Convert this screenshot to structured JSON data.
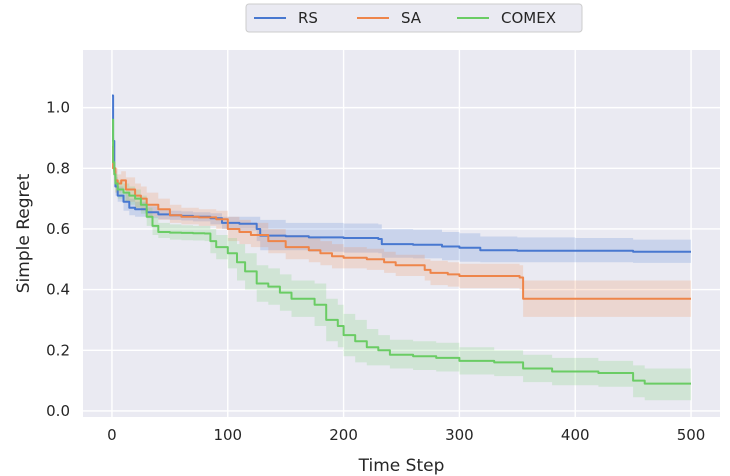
{
  "chart_data": {
    "type": "line",
    "xlabel": "Time Step",
    "ylabel": "Simple Regret",
    "xlim": [
      -25,
      525
    ],
    "ylim": [
      -0.02,
      1.19
    ],
    "xticks": [
      0,
      100,
      200,
      300,
      400,
      500
    ],
    "xtick_labels": [
      "0",
      "100",
      "200",
      "300",
      "400",
      "500"
    ],
    "yticks": [
      0.0,
      0.2,
      0.4,
      0.6,
      0.8,
      1.0
    ],
    "ytick_labels": [
      "0.0",
      "0.2",
      "0.4",
      "0.6",
      "0.8",
      "1.0"
    ],
    "grid": true,
    "legend_position": "top-center",
    "background_color": "#eaeaf2",
    "series": [
      {
        "name": "RS",
        "color": "#4878d0",
        "x": [
          0,
          1,
          2,
          3,
          5,
          10,
          15,
          20,
          30,
          40,
          50,
          60,
          70,
          85,
          95,
          110,
          125,
          128,
          150,
          170,
          200,
          230,
          233,
          260,
          285,
          300,
          318,
          350,
          400,
          445,
          450,
          500
        ],
        "y": [
          1.04,
          0.89,
          0.79,
          0.74,
          0.71,
          0.69,
          0.67,
          0.665,
          0.655,
          0.648,
          0.645,
          0.643,
          0.64,
          0.635,
          0.62,
          0.617,
          0.6,
          0.578,
          0.576,
          0.572,
          0.57,
          0.567,
          0.55,
          0.548,
          0.542,
          0.538,
          0.53,
          0.528,
          0.528,
          0.528,
          0.525,
          0.525
        ],
        "upper": [
          1.04,
          0.9,
          0.81,
          0.77,
          0.74,
          0.72,
          0.7,
          0.69,
          0.675,
          0.665,
          0.66,
          0.658,
          0.655,
          0.652,
          0.64,
          0.64,
          0.64,
          0.63,
          0.62,
          0.62,
          0.618,
          0.615,
          0.6,
          0.598,
          0.59,
          0.586,
          0.575,
          0.572,
          0.57,
          0.57,
          0.565,
          0.565
        ],
        "lower": [
          1.04,
          0.88,
          0.77,
          0.71,
          0.69,
          0.66,
          0.645,
          0.64,
          0.635,
          0.632,
          0.63,
          0.628,
          0.625,
          0.615,
          0.6,
          0.595,
          0.56,
          0.53,
          0.53,
          0.525,
          0.522,
          0.52,
          0.505,
          0.503,
          0.497,
          0.492,
          0.49,
          0.49,
          0.49,
          0.49,
          0.488,
          0.488
        ]
      },
      {
        "name": "SA",
        "color": "#ee854a",
        "x": [
          0,
          1,
          3,
          5,
          8,
          12,
          20,
          25,
          30,
          40,
          50,
          60,
          75,
          90,
          100,
          110,
          120,
          135,
          150,
          170,
          180,
          190,
          200,
          220,
          235,
          245,
          270,
          275,
          290,
          300,
          330,
          352,
          355,
          400,
          450,
          500
        ],
        "y": [
          0.87,
          0.8,
          0.76,
          0.75,
          0.76,
          0.73,
          0.71,
          0.7,
          0.68,
          0.665,
          0.645,
          0.64,
          0.638,
          0.632,
          0.6,
          0.59,
          0.58,
          0.56,
          0.54,
          0.53,
          0.52,
          0.51,
          0.505,
          0.5,
          0.49,
          0.48,
          0.465,
          0.455,
          0.45,
          0.445,
          0.445,
          0.44,
          0.37,
          0.37,
          0.37,
          0.37
        ],
        "upper": [
          0.88,
          0.82,
          0.8,
          0.78,
          0.79,
          0.77,
          0.75,
          0.74,
          0.72,
          0.7,
          0.68,
          0.67,
          0.665,
          0.66,
          0.64,
          0.63,
          0.62,
          0.6,
          0.58,
          0.57,
          0.56,
          0.55,
          0.54,
          0.535,
          0.525,
          0.515,
          0.5,
          0.495,
          0.49,
          0.485,
          0.485,
          0.48,
          0.43,
          0.43,
          0.43,
          0.43
        ],
        "lower": [
          0.86,
          0.78,
          0.72,
          0.72,
          0.73,
          0.69,
          0.67,
          0.66,
          0.64,
          0.63,
          0.62,
          0.615,
          0.61,
          0.6,
          0.56,
          0.55,
          0.54,
          0.52,
          0.5,
          0.49,
          0.48,
          0.47,
          0.47,
          0.465,
          0.455,
          0.445,
          0.43,
          0.415,
          0.41,
          0.405,
          0.405,
          0.4,
          0.31,
          0.31,
          0.31,
          0.31
        ]
      },
      {
        "name": "COMEX",
        "color": "#6acc64",
        "x": [
          0,
          1,
          2,
          3,
          5,
          10,
          15,
          20,
          25,
          30,
          35,
          40,
          50,
          60,
          70,
          80,
          85,
          90,
          100,
          108,
          115,
          125,
          135,
          145,
          155,
          175,
          185,
          195,
          200,
          210,
          220,
          230,
          240,
          260,
          280,
          300,
          330,
          355,
          380,
          420,
          450,
          460,
          480,
          500
        ],
        "y": [
          0.96,
          0.82,
          0.78,
          0.75,
          0.73,
          0.72,
          0.71,
          0.7,
          0.68,
          0.64,
          0.61,
          0.59,
          0.588,
          0.587,
          0.586,
          0.585,
          0.56,
          0.54,
          0.52,
          0.49,
          0.46,
          0.42,
          0.41,
          0.39,
          0.37,
          0.35,
          0.3,
          0.28,
          0.25,
          0.23,
          0.21,
          0.2,
          0.185,
          0.18,
          0.175,
          0.165,
          0.16,
          0.14,
          0.13,
          0.125,
          0.1,
          0.09,
          0.09,
          0.09
        ],
        "upper": [
          0.97,
          0.84,
          0.8,
          0.78,
          0.76,
          0.75,
          0.74,
          0.73,
          0.71,
          0.67,
          0.64,
          0.62,
          0.615,
          0.612,
          0.61,
          0.61,
          0.6,
          0.58,
          0.57,
          0.55,
          0.52,
          0.48,
          0.47,
          0.45,
          0.43,
          0.42,
          0.37,
          0.35,
          0.32,
          0.3,
          0.27,
          0.25,
          0.235,
          0.23,
          0.225,
          0.21,
          0.2,
          0.185,
          0.175,
          0.165,
          0.15,
          0.14,
          0.14,
          0.14
        ],
        "lower": [
          0.95,
          0.8,
          0.76,
          0.72,
          0.7,
          0.69,
          0.68,
          0.67,
          0.65,
          0.61,
          0.58,
          0.57,
          0.565,
          0.563,
          0.562,
          0.56,
          0.52,
          0.5,
          0.47,
          0.43,
          0.4,
          0.36,
          0.35,
          0.33,
          0.31,
          0.28,
          0.23,
          0.21,
          0.18,
          0.16,
          0.15,
          0.15,
          0.14,
          0.135,
          0.13,
          0.12,
          0.115,
          0.095,
          0.085,
          0.08,
          0.045,
          0.035,
          0.035,
          0.035
        ]
      }
    ]
  }
}
